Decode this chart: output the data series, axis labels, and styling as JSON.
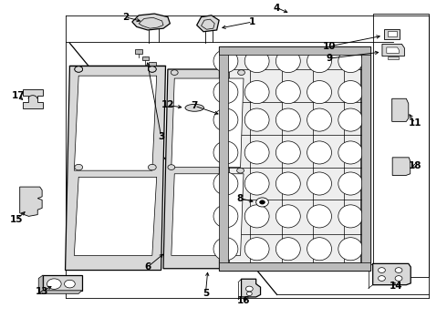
{
  "bg_color": "#ffffff",
  "line_color": "#000000",
  "gray_fill": "#d8d8d8",
  "dark_gray": "#999999",
  "mid_gray": "#bbbbbb",
  "label_positions": {
    "1": [
      0.565,
      0.935,
      0.52,
      0.91
    ],
    "2": [
      0.285,
      0.95,
      0.32,
      0.935
    ],
    "3": [
      0.355,
      0.57,
      0.37,
      0.56
    ],
    "4": [
      0.62,
      0.978,
      0.62,
      0.96
    ],
    "5": [
      0.47,
      0.105,
      0.47,
      0.12
    ],
    "6": [
      0.33,
      0.2,
      0.36,
      0.23
    ],
    "7": [
      0.43,
      0.68,
      0.5,
      0.66
    ],
    "8": [
      0.54,
      0.39,
      0.575,
      0.38
    ],
    "9": [
      0.74,
      0.81,
      0.775,
      0.8
    ],
    "10": [
      0.74,
      0.85,
      0.775,
      0.848
    ],
    "11": [
      0.93,
      0.62,
      0.9,
      0.62
    ],
    "12": [
      0.37,
      0.67,
      0.415,
      0.665
    ],
    "13": [
      0.095,
      0.115,
      0.115,
      0.13
    ],
    "14": [
      0.89,
      0.13,
      0.875,
      0.155
    ],
    "15": [
      0.04,
      0.335,
      0.075,
      0.35
    ],
    "16": [
      0.545,
      0.085,
      0.565,
      0.11
    ],
    "17": [
      0.05,
      0.705,
      0.075,
      0.685
    ],
    "18": [
      0.93,
      0.49,
      0.9,
      0.49
    ]
  }
}
